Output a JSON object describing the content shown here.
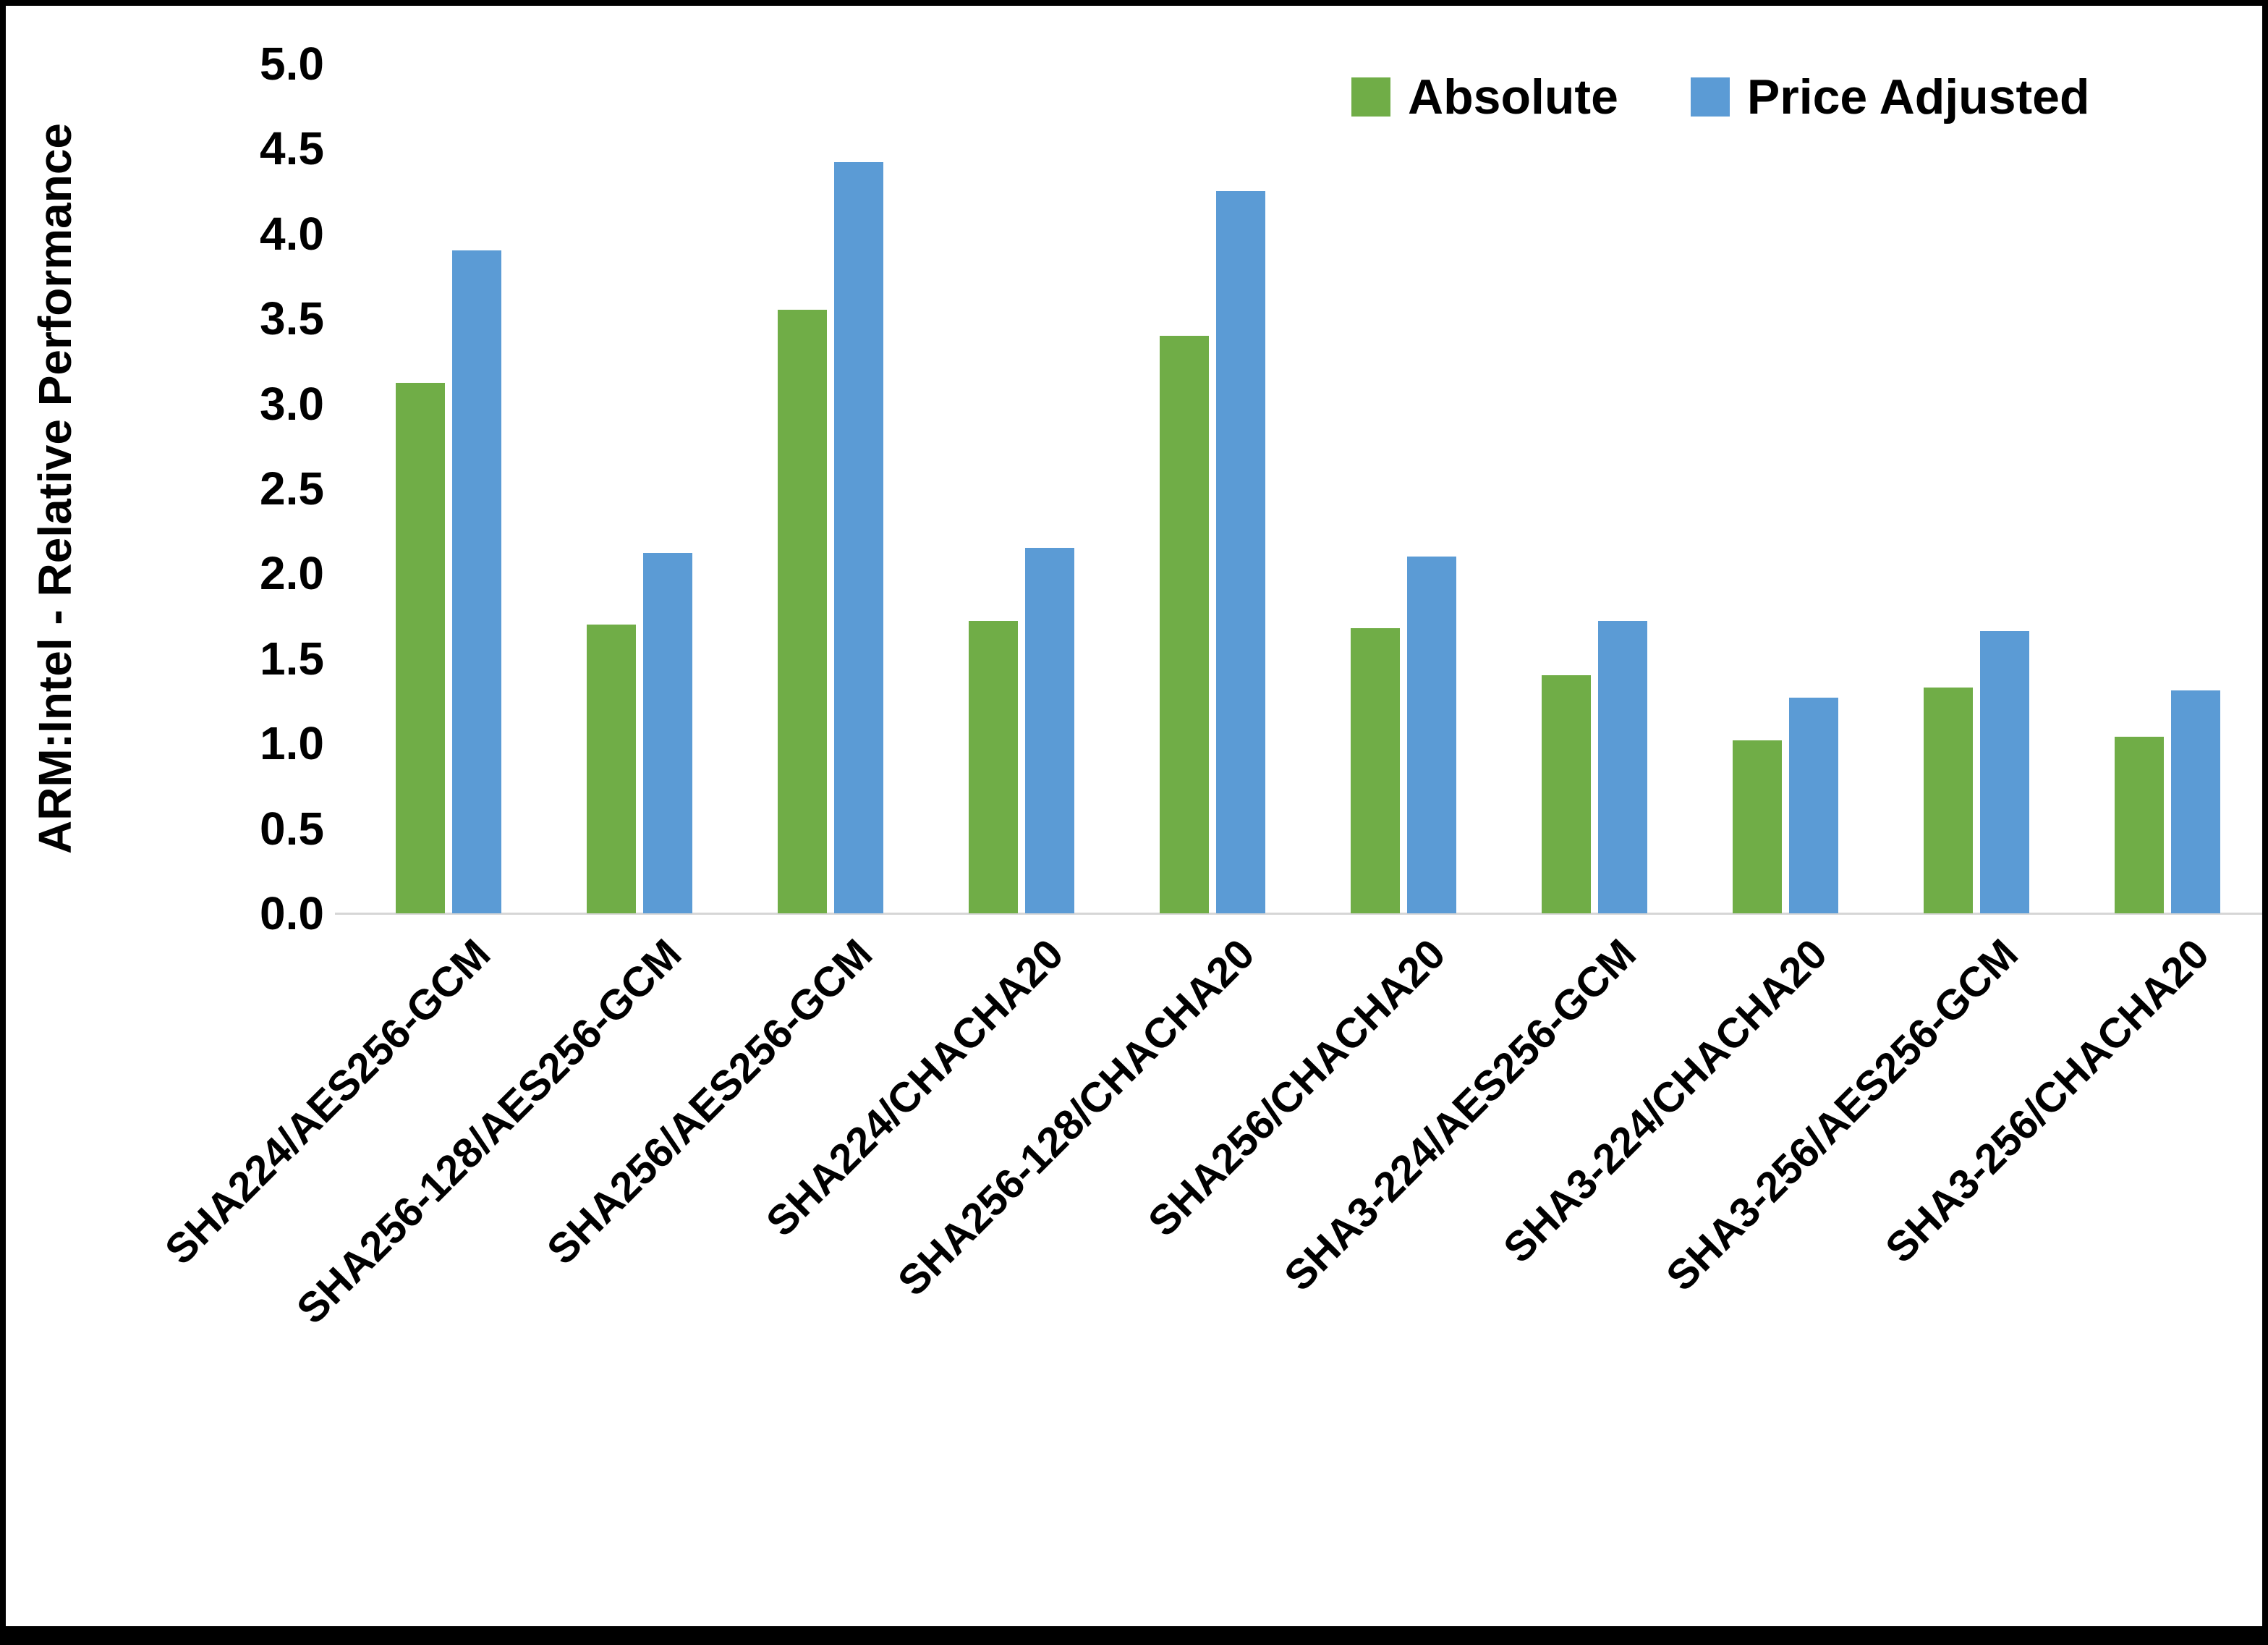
{
  "page": {
    "background": "#ffffff",
    "border_color": "#000000"
  },
  "legend": {
    "position": "top-right",
    "items": [
      {
        "label": "Absolute",
        "color": "#70AD47"
      },
      {
        "label": "Price Adjusted",
        "color": "#5B9BD5"
      }
    ]
  },
  "chart_data": {
    "type": "bar",
    "title": "",
    "xlabel": "",
    "ylabel": "ARM:Intel - Relative Performance",
    "ylim": [
      0,
      5
    ],
    "ytick_step": 0.5,
    "ytick_labels": [
      "0.0",
      "0.5",
      "1.0",
      "1.5",
      "2.0",
      "2.5",
      "3.0",
      "3.5",
      "4.0",
      "4.5",
      "5.0"
    ],
    "grid": false,
    "legend_position": "top-right",
    "categories": [
      "SHA224/AES256-GCM",
      "SHA256-128/AES256-GCM",
      "SHA256/AES256-GCM",
      "SHA224/CHACHA20",
      "SHA256-128/CHACHA20",
      "SHA256/CHACHA20",
      "SHA3-224/AES256-GCM",
      "SHA3-224/CHACHA20",
      "SHA3-256/AES256-GCM",
      "SHA3-256/CHACHA20"
    ],
    "series": [
      {
        "name": "Absolute",
        "color": "#70AD47",
        "values": [
          3.12,
          1.7,
          3.55,
          1.72,
          3.4,
          1.68,
          1.4,
          1.02,
          1.33,
          1.04
        ]
      },
      {
        "name": "Price Adjusted",
        "color": "#5B9BD5",
        "values": [
          3.9,
          2.12,
          4.42,
          2.15,
          4.25,
          2.1,
          1.72,
          1.27,
          1.66,
          1.31
        ]
      }
    ]
  }
}
